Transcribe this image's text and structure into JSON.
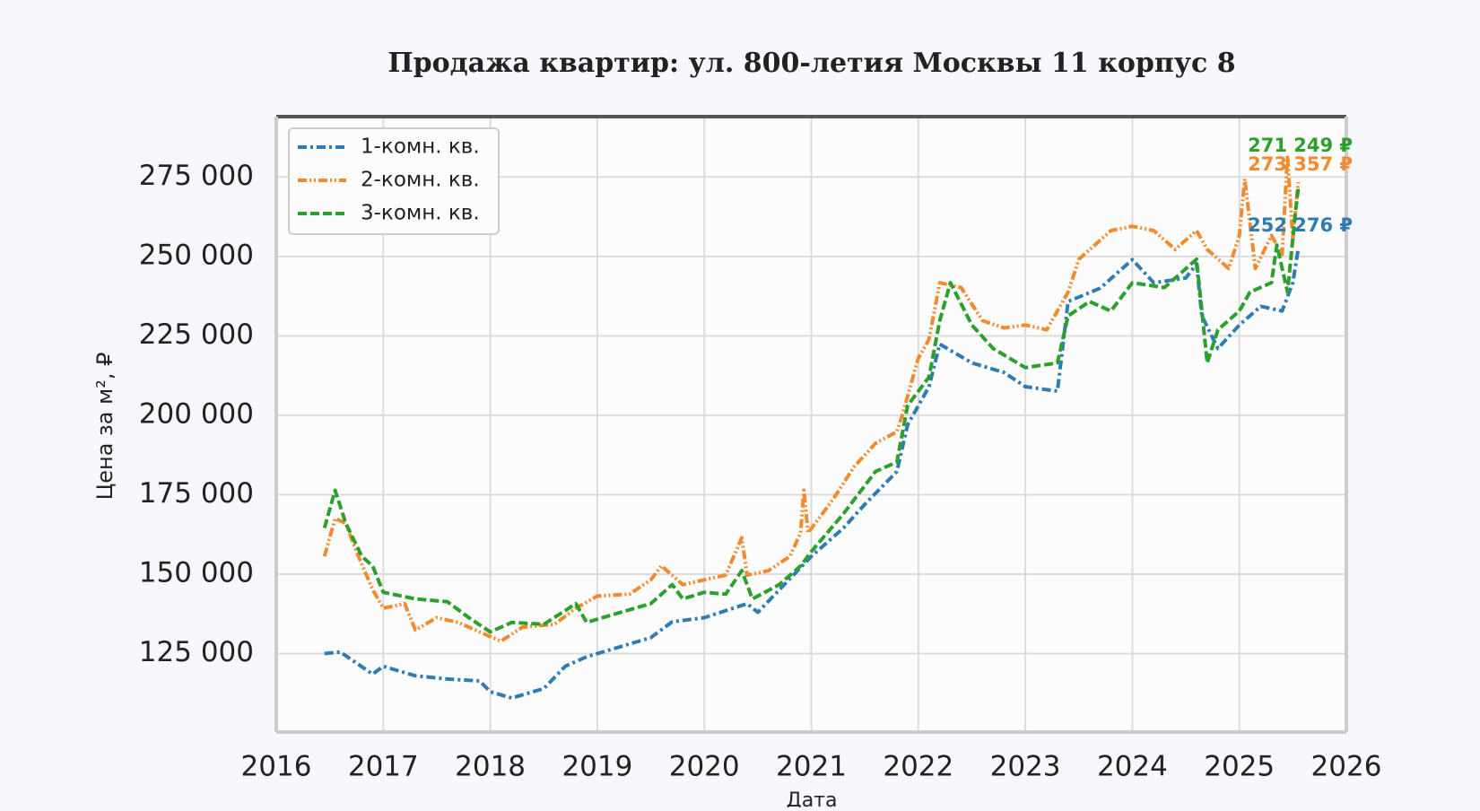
{
  "chart_data": {
    "type": "line",
    "title": "Продажа квартир: ул. 800-летия Москвы 11 корпус 8",
    "x_label": "Дата",
    "y_label": "Цена за м², ₽",
    "xlim": [
      2016,
      2026
    ],
    "xticks": [
      2016,
      2017,
      2018,
      2019,
      2020,
      2021,
      2022,
      2023,
      2024,
      2025,
      2026
    ],
    "ylim": [
      100300,
      294000
    ],
    "yticks": [
      {
        "value": 125000,
        "label": "125 000"
      },
      {
        "value": 150000,
        "label": "150 000"
      },
      {
        "value": 175000,
        "label": "175 000"
      },
      {
        "value": 200000,
        "label": "200 000"
      },
      {
        "value": 225000,
        "label": "225 000"
      },
      {
        "value": 250000,
        "label": "250 000"
      },
      {
        "value": 275000,
        "label": "275 000"
      }
    ],
    "grid": true,
    "legend": "upper left",
    "series": [
      {
        "name": "1-комн. кв.",
        "color": "#2f7bb6",
        "dash": "10 4 3 4",
        "end_label": "252 276 ₽",
        "x": [
          2016.45,
          2016.6,
          2016.9,
          2017.0,
          2017.3,
          2017.6,
          2017.9,
          2018.0,
          2018.2,
          2018.5,
          2018.7,
          2018.9,
          2019.2,
          2019.5,
          2019.7,
          2020.0,
          2020.4,
          2020.5,
          2021.0,
          2021.3,
          2021.5,
          2021.8,
          2021.9,
          2022.1,
          2022.2,
          2022.5,
          2022.8,
          2023.0,
          2023.3,
          2023.4,
          2023.7,
          2024.0,
          2024.2,
          2024.5,
          2024.6,
          2024.65,
          2024.8,
          2025.0,
          2025.2,
          2025.4,
          2025.5,
          2025.55
        ],
        "values": [
          125000,
          125500,
          118500,
          121000,
          118000,
          117000,
          116400,
          113000,
          111000,
          114000,
          121000,
          124000,
          127000,
          130000,
          135000,
          136300,
          140700,
          138000,
          155600,
          164500,
          172000,
          182300,
          197000,
          209000,
          222400,
          216500,
          213500,
          209000,
          207600,
          235800,
          240000,
          249000,
          241700,
          243200,
          247700,
          231300,
          221000,
          228400,
          234300,
          232800,
          241700,
          252276
        ]
      },
      {
        "name": "2-комн. кв.",
        "color": "#f28a2e",
        "dash": "10 3 2 3 2 3",
        "end_label": "273 357 ₽",
        "x": [
          2016.45,
          2016.55,
          2016.65,
          2016.75,
          2016.9,
          2017.0,
          2017.2,
          2017.3,
          2017.5,
          2017.7,
          2017.9,
          2018.1,
          2018.3,
          2018.6,
          2018.8,
          2019.0,
          2019.3,
          2019.5,
          2019.6,
          2019.8,
          2020.0,
          2020.2,
          2020.35,
          2020.4,
          2020.6,
          2020.8,
          2020.9,
          2020.93,
          2020.97,
          2021.2,
          2021.4,
          2021.6,
          2021.8,
          2021.85,
          2022.0,
          2022.1,
          2022.2,
          2022.4,
          2022.6,
          2022.8,
          2023.0,
          2023.2,
          2023.4,
          2023.5,
          2023.8,
          2024.0,
          2024.2,
          2024.4,
          2024.6,
          2024.7,
          2024.9,
          2025.0,
          2025.05,
          2025.15,
          2025.3,
          2025.4,
          2025.45,
          2025.5,
          2025.55
        ],
        "values": [
          155600,
          167500,
          166000,
          157000,
          145200,
          139300,
          140700,
          132400,
          136300,
          134800,
          131800,
          128900,
          133300,
          134200,
          139300,
          143100,
          143700,
          148200,
          152600,
          146700,
          148200,
          149700,
          161500,
          149700,
          151100,
          155600,
          163000,
          176400,
          163000,
          173400,
          183800,
          191200,
          194800,
          200100,
          218000,
          223900,
          241700,
          240200,
          229800,
          227500,
          228400,
          226900,
          238800,
          249100,
          258100,
          259500,
          258100,
          252200,
          258100,
          252200,
          246200,
          256600,
          274400,
          246200,
          256600,
          250600,
          281800,
          255100,
          273357
        ]
      },
      {
        "name": "3-комн. кв.",
        "color": "#2ca02c",
        "dash": "10 4",
        "end_label": "271 249 ₽",
        "x": [
          2016.45,
          2016.55,
          2016.65,
          2016.8,
          2016.9,
          2017.0,
          2017.3,
          2017.6,
          2017.8,
          2018.0,
          2018.2,
          2018.5,
          2018.8,
          2018.9,
          2019.2,
          2019.5,
          2019.7,
          2019.8,
          2020.0,
          2020.2,
          2020.35,
          2020.45,
          2020.7,
          2020.9,
          2021.0,
          2021.3,
          2021.6,
          2021.8,
          2021.9,
          2022.1,
          2022.2,
          2022.3,
          2022.5,
          2022.7,
          2023.0,
          2023.3,
          2023.4,
          2023.6,
          2023.8,
          2024.0,
          2024.3,
          2024.6,
          2024.7,
          2024.8,
          2025.0,
          2025.1,
          2025.3,
          2025.35,
          2025.45,
          2025.52,
          2025.55
        ],
        "values": [
          164500,
          176400,
          166000,
          155600,
          152600,
          144300,
          142200,
          141300,
          136300,
          131800,
          134800,
          134200,
          140700,
          134800,
          137800,
          140700,
          146700,
          142200,
          144300,
          143700,
          151100,
          142200,
          146700,
          152600,
          157100,
          169000,
          182300,
          185300,
          203100,
          212000,
          229800,
          241700,
          228400,
          221000,
          215000,
          216500,
          231300,
          235800,
          232800,
          241700,
          240200,
          249100,
          216500,
          226900,
          232800,
          238800,
          241700,
          253600,
          238800,
          262500,
          271249
        ]
      }
    ]
  }
}
